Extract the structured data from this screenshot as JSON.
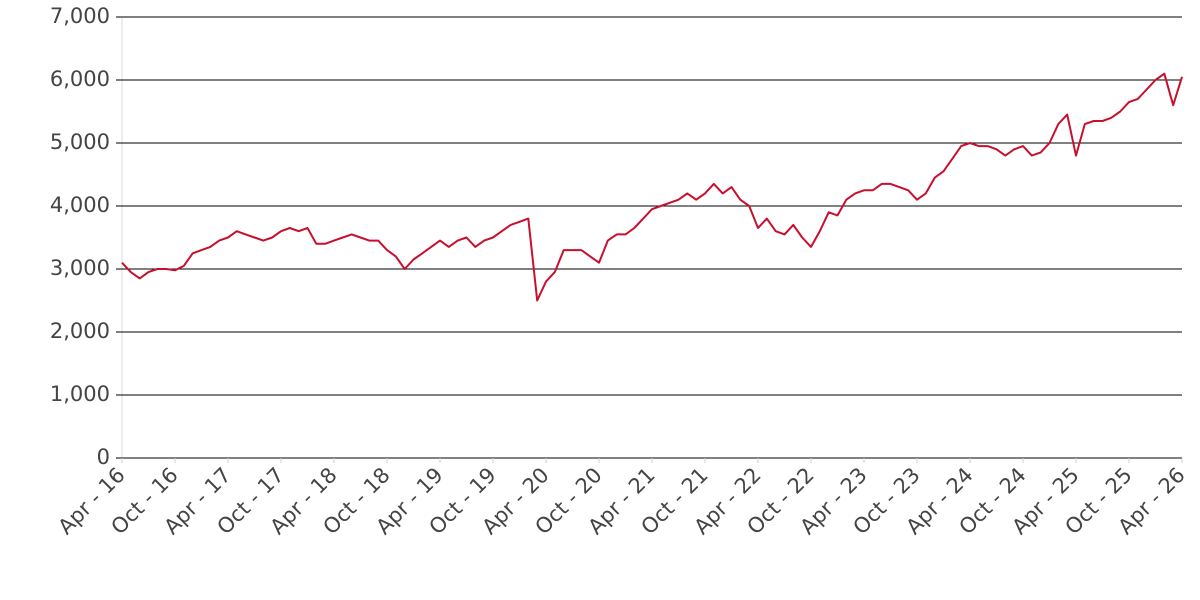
{
  "chart_data": {
    "type": "line",
    "color": "#c8102e",
    "grid": true,
    "x": [
      "2016-04",
      "2016-05",
      "2016-06",
      "2016-07",
      "2016-08",
      "2016-09",
      "2016-10",
      "2016-11",
      "2016-12",
      "2017-01",
      "2017-02",
      "2017-03",
      "2017-04",
      "2017-05",
      "2017-06",
      "2017-07",
      "2017-08",
      "2017-09",
      "2017-10",
      "2017-11",
      "2017-12",
      "2018-01",
      "2018-02",
      "2018-03",
      "2018-04",
      "2018-05",
      "2018-06",
      "2018-07",
      "2018-08",
      "2018-09",
      "2018-10",
      "2018-11",
      "2018-12",
      "2019-01",
      "2019-02",
      "2019-03",
      "2019-04",
      "2019-05",
      "2019-06",
      "2019-07",
      "2019-08",
      "2019-09",
      "2019-10",
      "2019-11",
      "2019-12",
      "2020-01",
      "2020-02",
      "2020-03",
      "2020-04",
      "2020-05",
      "2020-06",
      "2020-07",
      "2020-08",
      "2020-09",
      "2020-10",
      "2020-11",
      "2020-12",
      "2021-01",
      "2021-02",
      "2021-03",
      "2021-04",
      "2021-05",
      "2021-06",
      "2021-07",
      "2021-08",
      "2021-09",
      "2021-10",
      "2021-11",
      "2021-12",
      "2022-01",
      "2022-02",
      "2022-03",
      "2022-04",
      "2022-05",
      "2022-06",
      "2022-07",
      "2022-08",
      "2022-09",
      "2022-10",
      "2022-11",
      "2022-12",
      "2023-01",
      "2023-02",
      "2023-03",
      "2023-04",
      "2023-05",
      "2023-06",
      "2023-07",
      "2023-08",
      "2023-09",
      "2023-10",
      "2023-11",
      "2023-12",
      "2024-01",
      "2024-02",
      "2024-03",
      "2024-04",
      "2024-05",
      "2024-06",
      "2024-07",
      "2024-08",
      "2024-09",
      "2024-10",
      "2024-11",
      "2024-12",
      "2025-01",
      "2025-02",
      "2025-03",
      "2025-04",
      "2025-05",
      "2025-06",
      "2025-07",
      "2025-08",
      "2025-09",
      "2025-10",
      "2025-11",
      "2025-12",
      "2026-01",
      "2026-02",
      "2026-03",
      "2026-04"
    ],
    "values": [
      3100,
      2950,
      2850,
      2950,
      3000,
      3000,
      2980,
      3050,
      3250,
      3300,
      3350,
      3450,
      3500,
      3600,
      3550,
      3500,
      3450,
      3500,
      3600,
      3650,
      3600,
      3650,
      3400,
      3400,
      3450,
      3500,
      3550,
      3500,
      3450,
      3450,
      3300,
      3200,
      3000,
      3150,
      3250,
      3350,
      3450,
      3350,
      3450,
      3500,
      3350,
      3450,
      3500,
      3600,
      3700,
      3750,
      3800,
      2500,
      2800,
      2950,
      3300,
      3300,
      3300,
      3200,
      3100,
      3450,
      3550,
      3550,
      3650,
      3800,
      3950,
      4000,
      4050,
      4100,
      4200,
      4100,
      4200,
      4350,
      4200,
      4300,
      4100,
      4000,
      3650,
      3800,
      3600,
      3550,
      3700,
      3500,
      3350,
      3600,
      3900,
      3850,
      4100,
      4200,
      4250,
      4250,
      4350,
      4350,
      4300,
      4250,
      4100,
      4200,
      4450,
      4550,
      4750,
      4950,
      5000,
      4950,
      4950,
      4900,
      4800,
      4900,
      4950,
      4800,
      4850,
      5000,
      5300,
      5450,
      4800,
      5300,
      5350,
      5350,
      5400,
      5500,
      5650,
      5700,
      5850,
      6000,
      6100,
      5600,
      6050
    ],
    "xlim": [
      "2016-04",
      "2026-04"
    ],
    "xticks": [
      {
        "value": "2016-04",
        "label": "Apr - 16"
      },
      {
        "value": "2016-10",
        "label": "Oct - 16"
      },
      {
        "value": "2017-04",
        "label": "Apr - 17"
      },
      {
        "value": "2017-10",
        "label": "Oct - 17"
      },
      {
        "value": "2018-04",
        "label": "Apr - 18"
      },
      {
        "value": "2018-10",
        "label": "Oct - 18"
      },
      {
        "value": "2019-04",
        "label": "Apr - 19"
      },
      {
        "value": "2019-10",
        "label": "Oct - 19"
      },
      {
        "value": "2020-04",
        "label": "Apr - 20"
      },
      {
        "value": "2020-10",
        "label": "Oct - 20"
      },
      {
        "value": "2021-04",
        "label": "Apr - 21"
      },
      {
        "value": "2021-10",
        "label": "Oct - 21"
      },
      {
        "value": "2022-04",
        "label": "Apr - 22"
      },
      {
        "value": "2022-10",
        "label": "Oct - 22"
      },
      {
        "value": "2023-04",
        "label": "Apr - 23"
      },
      {
        "value": "2023-10",
        "label": "Oct - 23"
      },
      {
        "value": "2024-04",
        "label": "Apr - 24"
      },
      {
        "value": "2024-10",
        "label": "Oct - 24"
      },
      {
        "value": "2025-04",
        "label": "Apr - 25"
      },
      {
        "value": "2025-10",
        "label": "Oct - 25"
      },
      {
        "value": "2026-04",
        "label": "Apr - 26"
      }
    ],
    "ylim": [
      0,
      7000
    ],
    "yticks": [
      0,
      {
        "value": 1000,
        "label": "1,000"
      },
      {
        "value": 2000,
        "label": "2,000"
      },
      {
        "value": 3000,
        "label": "3,000"
      },
      {
        "value": 4000,
        "label": "4,000"
      },
      {
        "value": 5000,
        "label": "5,000"
      },
      {
        "value": 6000,
        "label": "6,000"
      },
      {
        "value": 7000,
        "label": "7,000"
      }
    ]
  }
}
